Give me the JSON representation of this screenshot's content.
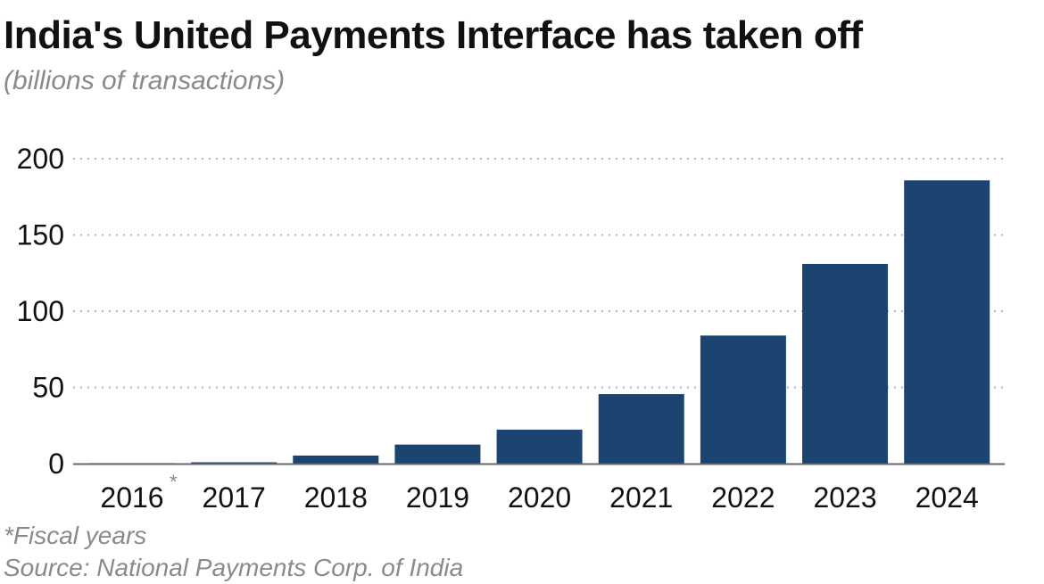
{
  "chart_data": {
    "type": "bar",
    "title": "India's United Payments Interface has taken off",
    "subtitle": "(billions of transactions)",
    "categories": [
      "2016",
      "2017",
      "2018",
      "2019",
      "2020",
      "2021",
      "2022",
      "2023",
      "2024"
    ],
    "category_marks": [
      "*",
      "",
      "",
      "",
      "",
      "",
      "",
      "",
      ""
    ],
    "values": [
      0.02,
      0.9,
      5.3,
      12.5,
      22.3,
      45.6,
      84,
      131,
      185.8
    ],
    "ylim": [
      0,
      200
    ],
    "yticks": [
      0,
      50,
      100,
      150,
      200
    ],
    "grid": true,
    "legend": "none",
    "xlabel": "",
    "ylabel": "",
    "colors": {
      "bar": "#1c4470",
      "grid": "#b5b5b5",
      "axis": "#666666"
    }
  },
  "footnote": "*Fiscal years",
  "source": "Source: National Payments Corp. of India"
}
